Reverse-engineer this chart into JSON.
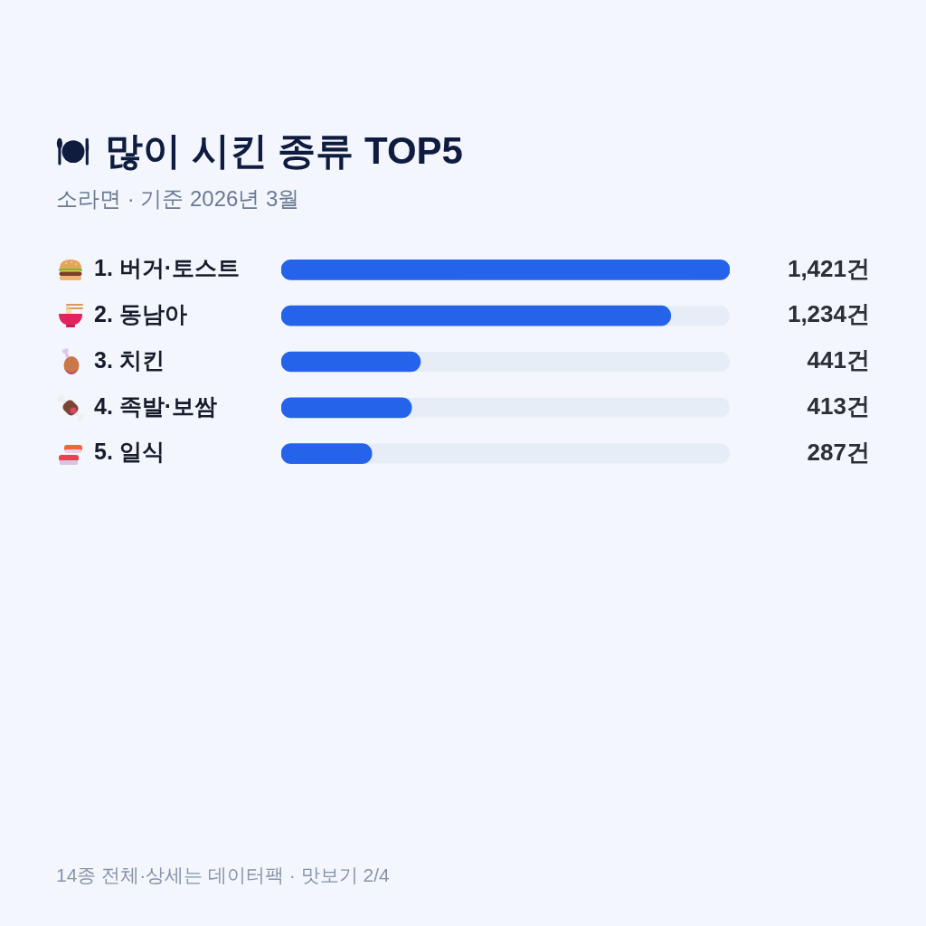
{
  "chart_data": {
    "type": "bar",
    "orientation": "horizontal",
    "title": "많이 시킨 종류 TOP5",
    "subtitle": "소라면 · 기준 2026년 3월",
    "categories": [
      "1. 버거·토스트",
      "2. 동남아",
      "3. 치킨",
      "4. 족발·보쌈",
      "5. 일식"
    ],
    "values": [
      1421,
      1234,
      441,
      413,
      287
    ],
    "color": "#2563eb",
    "value_labels": [
      "1,421건",
      "1,234건",
      "441건",
      "413건",
      "287건"
    ],
    "xlim": [
      0,
      1421
    ],
    "tick_labels": "y",
    "annotations": [
      "14종 전체·상세는 데이터팩 · 맛보기 2/4"
    ]
  }
}
